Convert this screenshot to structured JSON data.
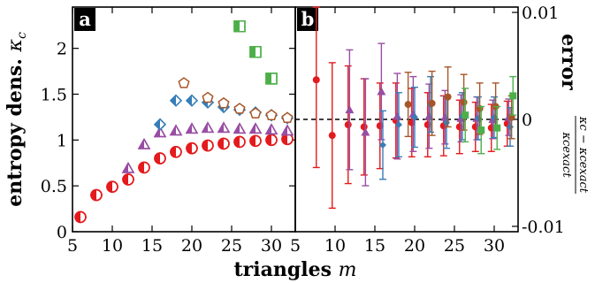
{
  "chart_data": [
    {
      "panel": "a",
      "type": "scatter",
      "xlabel": "triangles m",
      "ylabel": "entropy dens. κ_c",
      "xlim": [
        5,
        33
      ],
      "ylim": [
        0,
        2.45
      ],
      "xticks": [
        "5",
        "10",
        "15",
        "20",
        "25",
        "30"
      ],
      "yticks": [
        "0",
        "0.5",
        "1",
        "1.5",
        "2"
      ],
      "grid": false,
      "series": [
        {
          "color": "#e41a1c",
          "marker": "circle-half",
          "x": [
            6,
            8,
            10,
            12,
            14,
            16,
            18,
            20,
            22,
            24,
            26,
            28,
            30,
            32
          ],
          "y": [
            0.16,
            0.4,
            0.49,
            0.57,
            0.7,
            0.8,
            0.87,
            0.91,
            0.94,
            0.96,
            0.98,
            0.99,
            1.0,
            1.01
          ]
        },
        {
          "color": "#984ea3",
          "marker": "triangle-half",
          "x": [
            12,
            14,
            16,
            18,
            20,
            22,
            24,
            26,
            28,
            30,
            32
          ],
          "y": [
            0.69,
            0.95,
            1.08,
            1.1,
            1.12,
            1.13,
            1.13,
            1.12,
            1.12,
            1.11,
            1.1
          ]
        },
        {
          "color": "#377eb8",
          "marker": "diamond-half",
          "x": [
            16,
            18,
            20,
            22,
            24,
            26,
            28,
            30,
            32
          ],
          "y": [
            1.17,
            1.43,
            1.43,
            1.41,
            1.36,
            1.33,
            1.3,
            1.27,
            1.24
          ]
        },
        {
          "color": "#a65628",
          "marker": "pentagon-half",
          "x": [
            19,
            22,
            24,
            26,
            28,
            30,
            32
          ],
          "y": [
            1.62,
            1.46,
            1.4,
            1.34,
            1.29,
            1.27,
            1.24
          ]
        },
        {
          "color": "#4daf4a",
          "marker": "square-half",
          "x": [
            26,
            28,
            30
          ],
          "y": [
            2.24,
            1.96,
            1.67
          ]
        }
      ]
    },
    {
      "panel": "b",
      "type": "scatter",
      "xlabel": "triangles m",
      "ylabel": "error",
      "ylabel_fraction": {
        "numerator": "κ_c − κ_c^exact",
        "denominator": "κ_c^exact"
      },
      "xlim": [
        5,
        33
      ],
      "ylim": [
        -0.0105,
        0.0105
      ],
      "xticks": [
        "5",
        "10",
        "15",
        "20",
        "25",
        "30"
      ],
      "yticks": [
        "0.01",
        "0",
        "-0.01"
      ],
      "reference_line": 0,
      "grid": false,
      "series": [
        {
          "color": "#e41a1c",
          "x": [
            8,
            10,
            12,
            14,
            16,
            18,
            20,
            22,
            24,
            26,
            28,
            30,
            32
          ],
          "y": [
            0.0037,
            -0.0015,
            -0.0005,
            -0.0007,
            -0.0006,
            -0.0001,
            -0.0003,
            -0.0005,
            -0.0006,
            -0.0007,
            -0.0007,
            -0.0008,
            -0.0004
          ],
          "err": [
            0.0082,
            0.0068,
            0.0055,
            0.0045,
            0.004,
            0.0035,
            0.0032,
            0.003,
            0.0028,
            0.0025,
            0.0023,
            0.0022,
            0.0021
          ]
        },
        {
          "color": "#984ea3",
          "x": [
            12,
            14,
            16,
            18,
            20,
            22,
            24,
            26,
            28,
            30,
            32
          ],
          "y": [
            0.0009,
            -0.0012,
            0.0026,
            0.0003,
            0.0005,
            0.0003,
            0.0002,
            0.0001,
            0.0001,
            0.0,
            0.0002
          ],
          "err": [
            0.0056,
            0.005,
            0.0045,
            0.004,
            0.0035,
            0.003,
            0.0025,
            0.0022,
            0.002,
            0.0018,
            0.0017
          ]
        },
        {
          "color": "#377eb8",
          "x": [
            16,
            18,
            20,
            22,
            24,
            26,
            28,
            30,
            32
          ],
          "y": [
            -0.0024,
            -0.0005,
            0.0002,
            0.0014,
            -0.0003,
            0.0003,
            0.0001,
            0.0002,
            -0.0007
          ],
          "err": [
            0.0032,
            0.003,
            0.0028,
            0.0026,
            0.0024,
            0.0022,
            0.002,
            0.0019,
            0.0018
          ]
        },
        {
          "color": "#a65628",
          "x": [
            19,
            22,
            24,
            26,
            28,
            30,
            32
          ],
          "y": [
            0.0014,
            0.0015,
            0.0021,
            0.0016,
            0.001,
            0.0012,
            0.0002
          ],
          "err": [
            0.003,
            0.003,
            0.0028,
            0.0026,
            0.0024,
            0.0022,
            0.002
          ]
        },
        {
          "color": "#4daf4a",
          "x": [
            26,
            28,
            30,
            32
          ],
          "y": [
            0.0004,
            -0.001,
            -0.0008,
            0.0022
          ],
          "err": [
            0.0025,
            0.0022,
            0.002,
            0.0018
          ]
        }
      ]
    }
  ]
}
